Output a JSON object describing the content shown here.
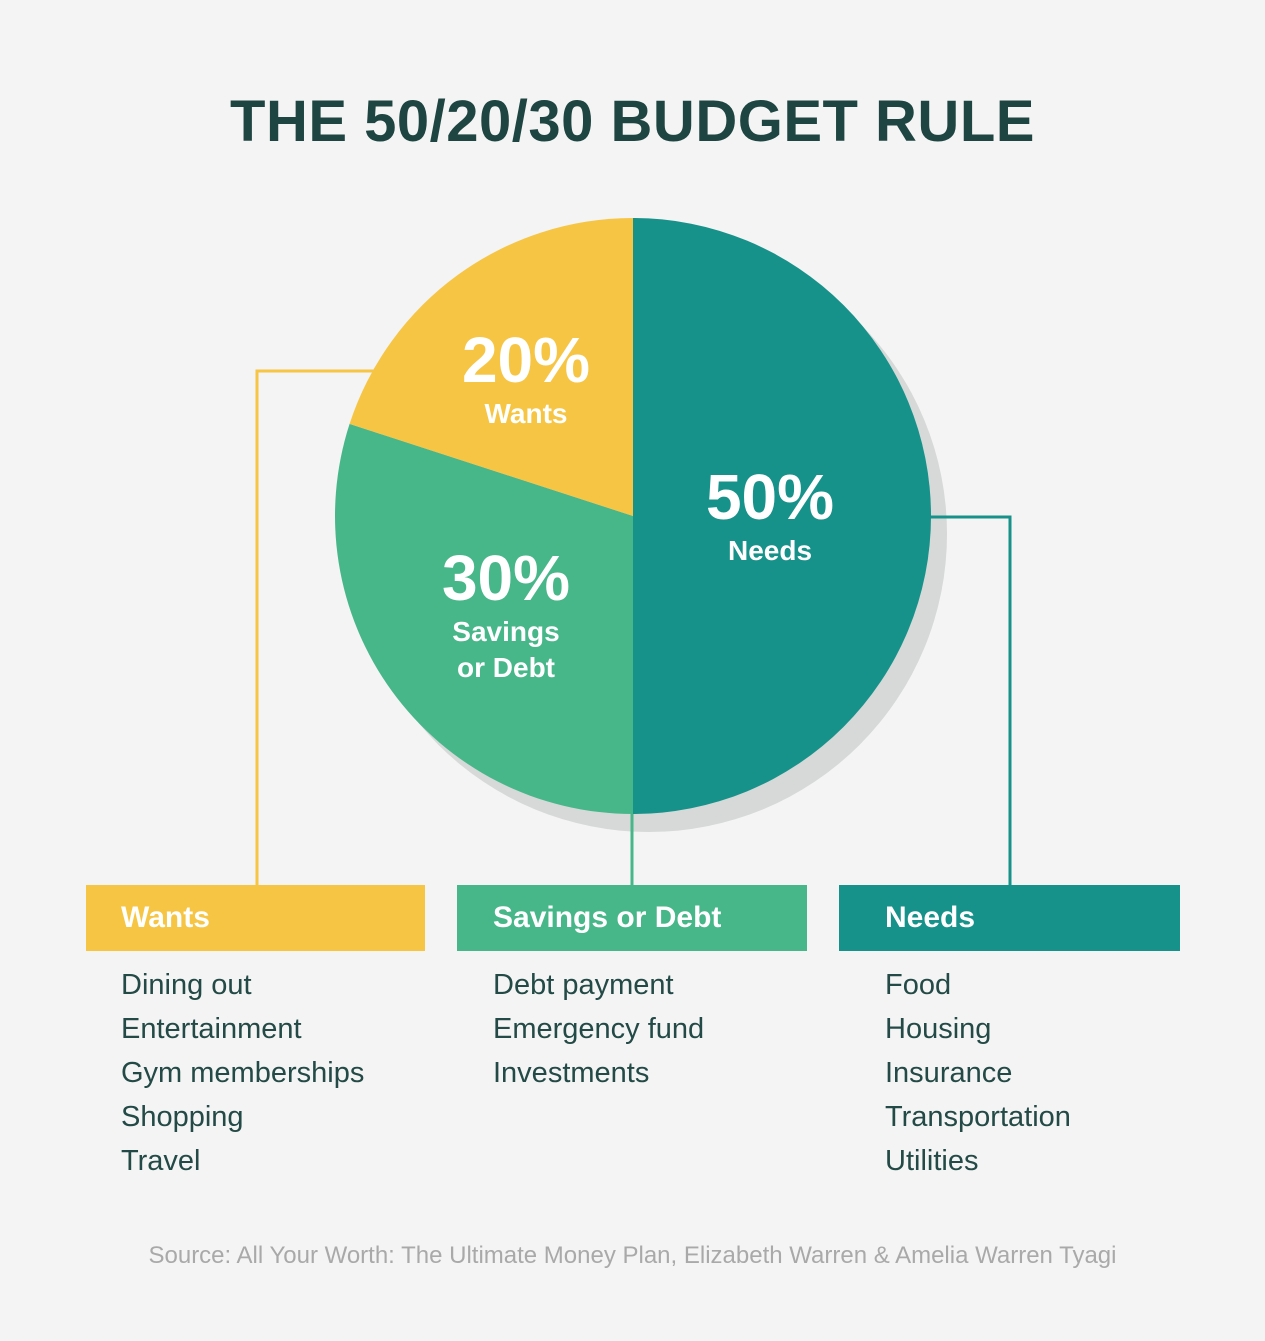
{
  "title": "THE 50/20/30 BUDGET RULE",
  "colors": {
    "needs": "#16928a",
    "savings": "#47b78a",
    "wants": "#f6c544",
    "shadow": "#d6d9d8",
    "text_dark": "#1e4541",
    "source_text": "#a9a9a9"
  },
  "chart_data": {
    "type": "pie",
    "slices": [
      {
        "key": "needs",
        "percent_label": "50%",
        "label": "Needs",
        "value": 50,
        "color": "#16928a"
      },
      {
        "key": "savings",
        "percent_label": "30%",
        "label": "Savings or Debt",
        "label_lines": [
          "Savings",
          "or Debt"
        ],
        "value": 30,
        "color": "#47b78a"
      },
      {
        "key": "wants",
        "percent_label": "20%",
        "label": "Wants",
        "value": 20,
        "color": "#f6c544"
      }
    ]
  },
  "categories": [
    {
      "key": "wants",
      "header": "Wants",
      "color": "#f6c544",
      "items": [
        "Dining out",
        "Entertainment",
        "Gym memberships",
        "Shopping",
        "Travel"
      ]
    },
    {
      "key": "savings",
      "header": "Savings or Debt",
      "color": "#47b78a",
      "items": [
        "Debt payment",
        "Emergency fund",
        "Investments"
      ]
    },
    {
      "key": "needs",
      "header": "Needs",
      "color": "#16928a",
      "items": [
        "Food",
        "Housing",
        "Insurance",
        "Transportation",
        "Utilities"
      ]
    }
  ],
  "source": "Source: All Your Worth: The Ultimate Money Plan, Elizabeth Warren & Amelia Warren Tyagi"
}
